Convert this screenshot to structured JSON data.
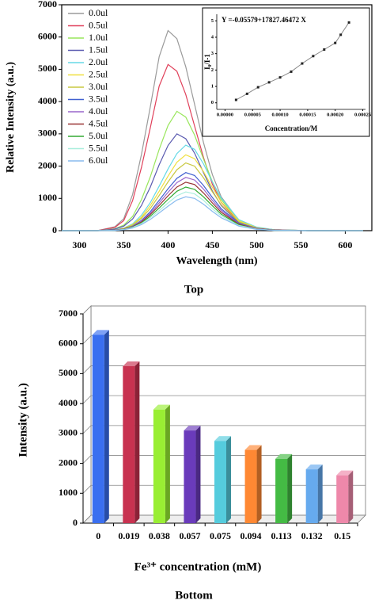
{
  "chart_data": [
    {
      "type": "line",
      "legend": "upper left",
      "xlabel": "Wavelength (nm)",
      "ylabel": "Relative Intensity (a.u.)",
      "caption": "Top",
      "xlim": [
        280,
        630
      ],
      "xticks": [
        300,
        350,
        400,
        450,
        500,
        550,
        600
      ],
      "ylim": [
        0,
        7000
      ],
      "yticks": [
        0,
        1000,
        2000,
        3000,
        4000,
        5000,
        6000,
        7000
      ],
      "x": [
        280,
        320,
        340,
        350,
        360,
        370,
        380,
        390,
        400,
        410,
        420,
        430,
        440,
        450,
        460,
        480,
        500,
        520,
        560,
        620
      ],
      "series": [
        {
          "name": "0.0ul",
          "color": "#9a9a9a",
          "values": [
            0,
            0,
            120,
            370,
            1120,
            2360,
            3840,
            5390,
            6200,
            5950,
            5080,
            3910,
            2730,
            1740,
            1050,
            310,
            90,
            30,
            0,
            0
          ]
        },
        {
          "name": "0.5ul",
          "color": "#e0405a",
          "values": [
            0,
            0,
            100,
            310,
            930,
            1960,
            3190,
            4480,
            5150,
            4940,
            4220,
            3240,
            2270,
            1440,
            880,
            260,
            80,
            30,
            0,
            0
          ]
        },
        {
          "name": "1.0ul",
          "color": "#99e65c",
          "values": [
            0,
            0,
            60,
            170,
            440,
            960,
            1670,
            2520,
            3260,
            3700,
            3520,
            2960,
            2220,
            1520,
            960,
            300,
            90,
            30,
            0,
            0
          ]
        },
        {
          "name": "1.5ul",
          "color": "#5a5ab0",
          "values": [
            0,
            0,
            50,
            140,
            360,
            780,
            1350,
            2040,
            2640,
            3000,
            2850,
            2400,
            1800,
            1230,
            780,
            240,
            80,
            20,
            0,
            0
          ]
        },
        {
          "name": "2.0ul",
          "color": "#66d9e6",
          "values": [
            0,
            0,
            30,
            80,
            210,
            480,
            870,
            1380,
            1910,
            2390,
            2650,
            2520,
            2070,
            1510,
            1010,
            340,
            110,
            30,
            0,
            0
          ]
        },
        {
          "name": "2.5ul",
          "color": "#f0e040",
          "values": [
            0,
            0,
            20,
            70,
            190,
            420,
            780,
            1220,
            1690,
            2120,
            2350,
            2230,
            1830,
            1340,
            890,
            310,
            90,
            20,
            0,
            0
          ]
        },
        {
          "name": "3.0ul",
          "color": "#c8c840",
          "values": [
            0,
            0,
            20,
            60,
            170,
            380,
            690,
            1090,
            1510,
            1890,
            2100,
            2000,
            1640,
            1200,
            800,
            270,
            80,
            20,
            0,
            0
          ]
        },
        {
          "name": "3.5ul",
          "color": "#4060d0",
          "values": [
            0,
            0,
            20,
            50,
            140,
            320,
            590,
            940,
            1300,
            1620,
            1800,
            1710,
            1400,
            1030,
            680,
            230,
            70,
            20,
            0,
            0
          ]
        },
        {
          "name": "4.0ul",
          "color": "#9966cc",
          "values": [
            0,
            0,
            20,
            50,
            130,
            300,
            540,
            860,
            1190,
            1490,
            1650,
            1570,
            1290,
            940,
            630,
            210,
            70,
            20,
            0,
            0
          ]
        },
        {
          "name": "4.5ul",
          "color": "#993333",
          "values": [
            0,
            0,
            20,
            50,
            120,
            270,
            500,
            780,
            1080,
            1350,
            1500,
            1430,
            1170,
            860,
            570,
            200,
            60,
            20,
            0,
            0
          ]
        },
        {
          "name": "5.0ul",
          "color": "#33aa33",
          "values": [
            0,
            0,
            10,
            40,
            110,
            240,
            450,
            700,
            970,
            1220,
            1350,
            1280,
            1050,
            770,
            510,
            180,
            50,
            10,
            0,
            0
          ]
        },
        {
          "name": "5.5ul",
          "color": "#aaeedd",
          "values": [
            0,
            0,
            10,
            40,
            100,
            220,
            400,
            620,
            860,
            1080,
            1200,
            1140,
            940,
            680,
            460,
            160,
            50,
            10,
            0,
            0
          ]
        },
        {
          "name": "6.0ul",
          "color": "#88bbee",
          "values": [
            0,
            0,
            10,
            30,
            80,
            190,
            350,
            550,
            760,
            950,
            1050,
            1000,
            820,
            600,
            400,
            140,
            40,
            10,
            0,
            0
          ]
        }
      ]
    },
    {
      "type": "line",
      "markers": true,
      "title": "Y =-0.05579+17827.46472 X",
      "xlabel": "Concentration/M",
      "ylabel": "I₀/I-1",
      "color": "#888888",
      "marker_color": "#222222",
      "xlim": [
        -1.5e-05,
        0.000255
      ],
      "xticks": [
        {
          "value": 0,
          "label": "0.00000"
        },
        {
          "value": 5e-05,
          "label": "0.00005"
        },
        {
          "value": 0.0001,
          "label": "0.00010"
        },
        {
          "value": 0.00015,
          "label": "0.00015"
        },
        {
          "value": 0.0002,
          "label": "0.00020"
        },
        {
          "value": 0.00025,
          "label": "0.00025"
        }
      ],
      "ylim": [
        -0.4,
        5.4
      ],
      "yticks": [
        0,
        1,
        2,
        3,
        4,
        5
      ],
      "x": [
        2e-05,
        4e-05,
        6e-05,
        8e-05,
        0.0001,
        0.00012,
        0.00014,
        0.00016,
        0.00018,
        0.0002,
        0.00021,
        0.000225
      ],
      "values": [
        0.18,
        0.55,
        0.95,
        1.25,
        1.55,
        1.9,
        2.4,
        2.85,
        3.25,
        3.65,
        4.15,
        4.9
      ]
    },
    {
      "type": "bar",
      "xlabel": "Fe³⁺ concentration (mM)",
      "ylabel": "Intensity (a.u.)",
      "caption": "Bottom",
      "grid": true,
      "ylim": [
        0,
        7000
      ],
      "yticks": [
        0,
        1000,
        2000,
        3000,
        4000,
        5000,
        6000,
        7000
      ],
      "categories": [
        "0",
        "0.019",
        "0.038",
        "0.057",
        "0.075",
        "0.094",
        "0.113",
        "0.132",
        "0.15"
      ],
      "values": [
        6300,
        5250,
        3800,
        3100,
        2750,
        2450,
        2150,
        1800,
        1600
      ],
      "colors": [
        "#3a6ff0",
        "#c83250",
        "#99ee33",
        "#6a3bbb",
        "#55ccdd",
        "#ff8833",
        "#44bb44",
        "#66aaee",
        "#ee88aa"
      ]
    }
  ]
}
